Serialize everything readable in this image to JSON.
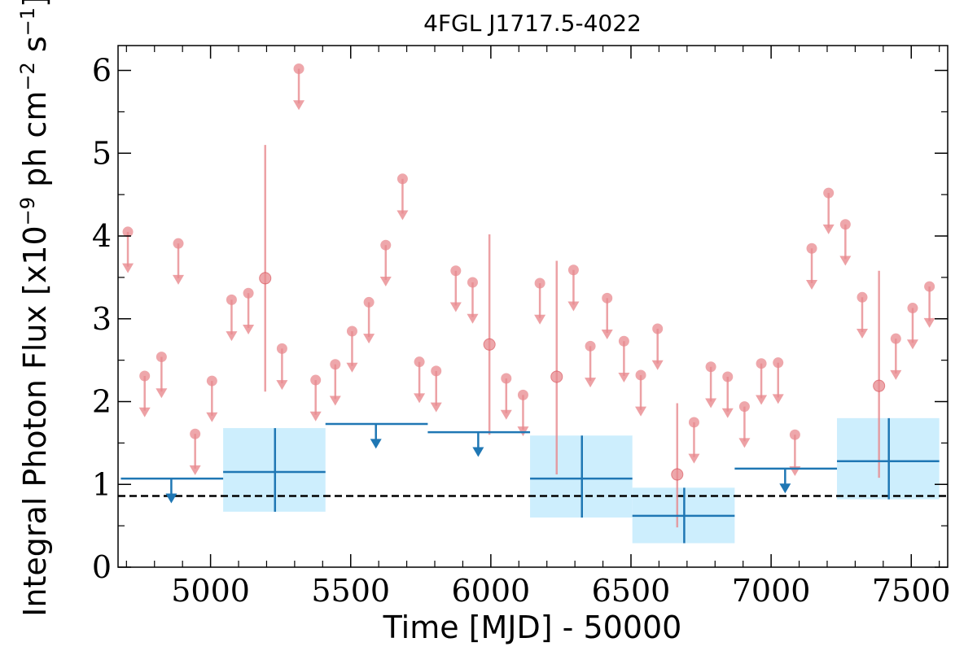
{
  "chart_data": {
    "type": "scatter",
    "title": "4FGL J1717.5-4022",
    "xlabel": "Time [MJD] - 50000",
    "ylabel": "Integral Photon Flux [x10",
    "ylabel_exp1": "−9",
    "ylabel_mid": " ph cm",
    "ylabel_exp2": "−2",
    "ylabel_s": " s",
    "ylabel_exp3": "−1",
    "ylabel_end": "]",
    "xlim": [
      4670,
      7630
    ],
    "ylim": [
      0,
      6.3
    ],
    "xticks": [
      5000,
      5500,
      6000,
      6500,
      7000,
      7500
    ],
    "yticks": [
      0,
      1,
      2,
      3,
      4,
      5,
      6
    ],
    "xtick_labels": [
      "5000",
      "5500",
      "6000",
      "6500",
      "7000",
      "7500"
    ],
    "ytick_labels": [
      "0",
      "1",
      "2",
      "3",
      "4",
      "5",
      "6"
    ],
    "reference_line": {
      "y": 0.86,
      "style": "dashed",
      "color": "#000000"
    },
    "colors": {
      "fine": "#e88a8f",
      "coarse": "#1f77b4",
      "band": "#cdeefd"
    },
    "fine_bins": {
      "upper_limits": [
        [
          4705,
          4.05
        ],
        [
          4765,
          2.31
        ],
        [
          4825,
          2.54
        ],
        [
          4885,
          3.91
        ],
        [
          4945,
          1.61
        ],
        [
          5005,
          2.25
        ],
        [
          5075,
          3.23
        ],
        [
          5135,
          3.31
        ],
        [
          5255,
          2.64
        ],
        [
          5315,
          6.02
        ],
        [
          5375,
          2.26
        ],
        [
          5445,
          2.45
        ],
        [
          5505,
          2.85
        ],
        [
          5565,
          3.2
        ],
        [
          5625,
          3.89
        ],
        [
          5685,
          4.69
        ],
        [
          5745,
          2.48
        ],
        [
          5805,
          2.37
        ],
        [
          5875,
          3.58
        ],
        [
          5935,
          3.44
        ],
        [
          6055,
          2.28
        ],
        [
          6115,
          2.08
        ],
        [
          6175,
          3.43
        ],
        [
          6295,
          3.59
        ],
        [
          6355,
          2.67
        ],
        [
          6415,
          3.25
        ],
        [
          6475,
          2.73
        ],
        [
          6535,
          2.32
        ],
        [
          6595,
          2.88
        ],
        [
          6725,
          1.75
        ],
        [
          6785,
          2.42
        ],
        [
          6845,
          2.3
        ],
        [
          6905,
          1.94
        ],
        [
          6965,
          2.46
        ],
        [
          7025,
          2.47
        ],
        [
          7085,
          1.6
        ],
        [
          7145,
          3.85
        ],
        [
          7205,
          4.52
        ],
        [
          7265,
          4.14
        ],
        [
          7325,
          3.26
        ],
        [
          7445,
          2.76
        ],
        [
          7505,
          3.13
        ],
        [
          7565,
          3.39
        ]
      ],
      "detections": [
        {
          "x": 5195,
          "y": 3.49,
          "ylow": 2.12,
          "yhigh": 5.1
        },
        {
          "x": 5995,
          "y": 2.69,
          "ylow": 1.6,
          "yhigh": 4.02
        },
        {
          "x": 6235,
          "y": 2.3,
          "ylow": 1.12,
          "yhigh": 3.7
        },
        {
          "x": 6665,
          "y": 1.12,
          "ylow": 0.48,
          "yhigh": 1.98
        },
        {
          "x": 7385,
          "y": 2.19,
          "ylow": 1.08,
          "yhigh": 3.58
        }
      ]
    },
    "coarse_bins": {
      "upper_limits": [
        {
          "x": 4860,
          "xlow": 4680,
          "xhigh": 5045,
          "y": 1.07
        },
        {
          "x": 5590,
          "xlow": 5410,
          "xhigh": 5775,
          "y": 1.73
        },
        {
          "x": 5955,
          "xlow": 5775,
          "xhigh": 6140,
          "y": 1.63
        },
        {
          "x": 7050,
          "xlow": 6870,
          "xhigh": 7235,
          "y": 1.19
        }
      ],
      "detections": [
        {
          "x": 5230,
          "xlow": 5045,
          "xhigh": 5410,
          "y": 1.15,
          "ylow": 0.67,
          "yhigh": 1.68
        },
        {
          "x": 6325,
          "xlow": 6140,
          "xhigh": 6505,
          "y": 1.07,
          "ylow": 0.6,
          "yhigh": 1.59
        },
        {
          "x": 6690,
          "xlow": 6505,
          "xhigh": 6870,
          "y": 0.62,
          "ylow": 0.29,
          "yhigh": 0.96
        },
        {
          "x": 7420,
          "xlow": 7235,
          "xhigh": 7600,
          "y": 1.28,
          "ylow": 0.82,
          "yhigh": 1.8
        }
      ]
    }
  }
}
